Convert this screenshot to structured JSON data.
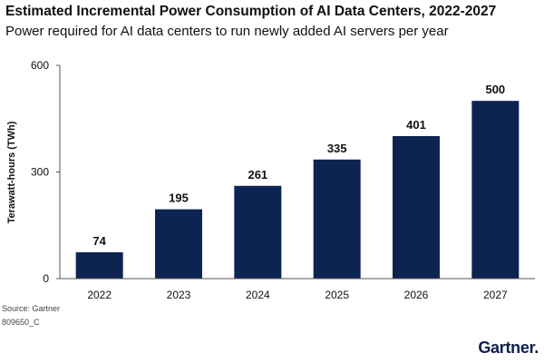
{
  "colors": {
    "bar": "#0d2452",
    "axis": "#555555",
    "grid": "#dddddd",
    "text": "#111111",
    "brand": "#0d1f4f"
  },
  "brand": {
    "name": "Gartner",
    "suffix": "."
  },
  "footer": {
    "source": "Source: Gartner",
    "code": "809650_C"
  },
  "chart_data": {
    "type": "bar",
    "title": "Estimated Incremental Power Consumption of AI Data Centers, 2022-2027",
    "subtitle": "Power required for AI data centers to run newly added AI servers per year",
    "xlabel": "",
    "ylabel": "Terawatt-hours (TWh)",
    "categories": [
      "2022",
      "2023",
      "2024",
      "2025",
      "2026",
      "2027"
    ],
    "values": [
      74,
      195,
      261,
      335,
      401,
      500
    ],
    "data_labels": [
      "74",
      "195",
      "261",
      "335",
      "401",
      "500"
    ],
    "ylim": [
      0,
      600
    ],
    "yticks": [
      0,
      300,
      600
    ],
    "ytick_labels": [
      "0",
      "300",
      "600"
    ],
    "grid": false,
    "legend": "none"
  }
}
